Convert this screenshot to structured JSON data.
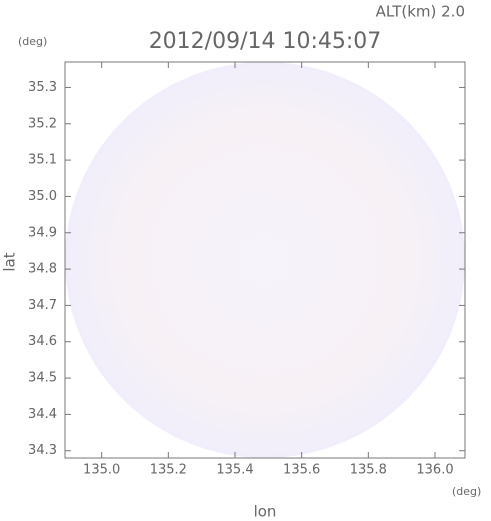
{
  "chart_data": {
    "type": "radar-map",
    "title": "2012/09/14 10:45:07",
    "subtitle": "ALT(km) 2.0",
    "x_label": "lon",
    "y_label": "lat",
    "x_unit": "(deg)",
    "y_unit": "(deg)",
    "xlim": [
      134.89,
      136.09
    ],
    "ylim": [
      34.28,
      35.37
    ],
    "xticks": [
      {
        "value": 135,
        "label": "135.0"
      },
      135.2,
      135.4,
      135.6,
      135.8,
      {
        "value": 136,
        "label": "136.0"
      }
    ],
    "yticks": [
      34.3,
      34.4,
      34.5,
      34.6,
      34.7,
      34.8,
      34.9,
      {
        "value": 35,
        "label": "35.0"
      },
      35.1,
      35.2,
      35.3
    ]
  }
}
